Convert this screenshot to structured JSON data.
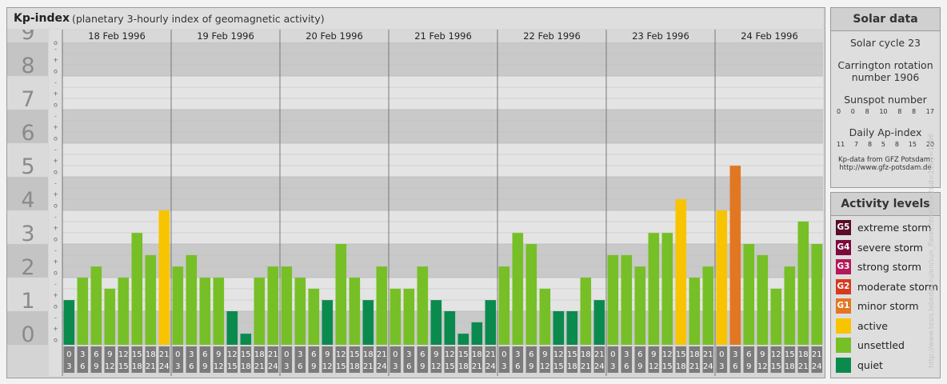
{
  "header": {
    "title": "Kp-index",
    "subtitle": "(planetary 3-hourly index of geomagnetic activity)"
  },
  "chart_data": {
    "type": "bar",
    "ylim": [
      0,
      9
    ],
    "y_ticks": [
      "0",
      "1",
      "2",
      "3",
      "4",
      "5",
      "6",
      "7",
      "8",
      "9"
    ],
    "sub_ticks": [
      "o",
      "+",
      "-"
    ],
    "days": [
      "18 Feb 1996",
      "19 Feb 1996",
      "20 Feb 1996",
      "21 Feb 1996",
      "22 Feb 1996",
      "23 Feb 1996",
      "24 Feb 1996"
    ],
    "interval_start_labels": [
      "0",
      "3",
      "6",
      "9",
      "12",
      "15",
      "18",
      "21"
    ],
    "interval_end_labels": [
      "3",
      "6",
      "9",
      "12",
      "15",
      "18",
      "21",
      "24"
    ],
    "series": [
      {
        "values": [
          1.33,
          2,
          2.33,
          1.67,
          2,
          3.33,
          2.67,
          4,
          2.33,
          2.67,
          2,
          2,
          1,
          0.33,
          2,
          2.33,
          2.33,
          2,
          1.67,
          1.33,
          3,
          2,
          1.33,
          2.33,
          1.67,
          1.67,
          2.33,
          1.33,
          1,
          0.33,
          0.67,
          1.33,
          2.33,
          3.33,
          3,
          1.67,
          1,
          1,
          2,
          1.33,
          2.67,
          2.67,
          2.33,
          3.33,
          3.33,
          4.33,
          2,
          2.33,
          4,
          5.33,
          3,
          2.67,
          1.67,
          2.33,
          3.67,
          3
        ]
      }
    ],
    "colors": {
      "quiet": "#0b8a4e",
      "unsettled": "#77bf26",
      "active": "#f8c400",
      "minor_storm": "#e27722"
    },
    "grid": true
  },
  "solar_data": {
    "title": "Solar data",
    "cycle": "Solar cycle 23",
    "carrington_line1": "Carrington rotation",
    "carrington_line2": "number 1906",
    "sunspot_label": "Sunspot number",
    "sunspot_values": [
      "0",
      "0",
      "8",
      "10",
      "8",
      "8",
      "17"
    ],
    "ap_label": "Daily Ap-index",
    "ap_values": [
      "11",
      "7",
      "8",
      "5",
      "8",
      "15",
      "20"
    ],
    "source_line1": "Kp-data from GFZ Potsdam:",
    "source_line2": "http://www.gfz-potsdam.de"
  },
  "legend": {
    "title": "Activity levels",
    "items": [
      {
        "code": "G5",
        "label": "extreme storm",
        "color": "#5a0a2a"
      },
      {
        "code": "G4",
        "label": "severe storm",
        "color": "#7d0a3c"
      },
      {
        "code": "G3",
        "label": "strong storm",
        "color": "#b4185a"
      },
      {
        "code": "G2",
        "label": "moderate storm",
        "color": "#d63a1e"
      },
      {
        "code": "G1",
        "label": "minor storm",
        "color": "#e27722"
      },
      {
        "code": "",
        "label": "active",
        "color": "#f8c400"
      },
      {
        "code": "",
        "label": "unsettled",
        "color": "#77bf26"
      },
      {
        "code": "",
        "label": "quiet",
        "color": "#0b8a4e"
      }
    ]
  },
  "watermark": "http://www.tesis.lebedev.ru/en/sun_flares.html?m=2&d=21&y=1996"
}
